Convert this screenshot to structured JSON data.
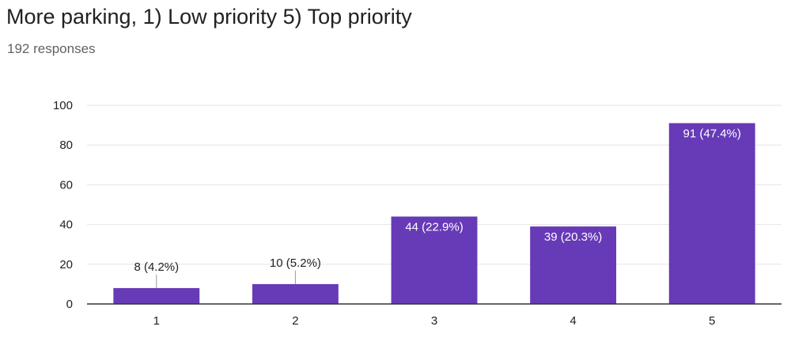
{
  "header": {
    "title": "More parking, 1) Low priority 5) Top priority",
    "responses": "192 responses"
  },
  "chart_data": {
    "type": "bar",
    "categories": [
      "1",
      "2",
      "3",
      "4",
      "5"
    ],
    "values": [
      8,
      10,
      44,
      39,
      91
    ],
    "data_labels": [
      "8 (4.2%)",
      "10 (5.2%)",
      "44 (22.9%)",
      "39 (20.3%)",
      "91 (47.4%)"
    ],
    "ylim": [
      0,
      100
    ],
    "yticks": [
      0,
      20,
      40,
      60,
      80,
      100
    ],
    "grid": true,
    "bar_color": "#673ab7",
    "grid_color": "#e6e6e6",
    "axis_color": "#333333"
  }
}
